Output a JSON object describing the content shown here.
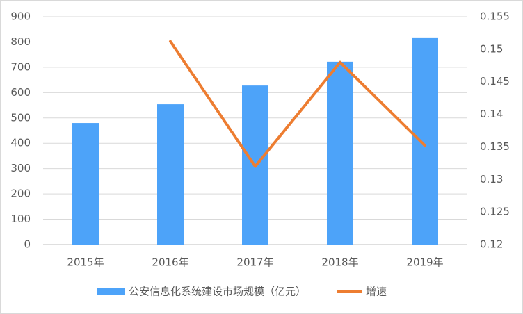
{
  "chart_data": {
    "type": "combo",
    "categories": [
      "2015年",
      "2016年",
      "2017年",
      "2018年",
      "2019年"
    ],
    "series": [
      {
        "name": "公安信息化系统建设市场规模（亿元）",
        "type": "bar",
        "color": "#4da3f9",
        "values": [
          480,
          554,
          628,
          722,
          818
        ]
      },
      {
        "name": "增速",
        "type": "line",
        "axis": "y2",
        "color": "#ed7d31",
        "values": [
          null,
          0.1512,
          0.132,
          0.148,
          0.1352
        ]
      }
    ],
    "ylim": [
      0,
      900
    ],
    "yticks": [
      0,
      100,
      200,
      300,
      400,
      500,
      600,
      700,
      800,
      900
    ],
    "y2lim": [
      0.12,
      0.155
    ],
    "y2ticks": [
      0.12,
      0.125,
      0.13,
      0.135,
      0.14,
      0.145,
      0.15,
      0.155
    ],
    "grid": true,
    "legend": "bottom"
  }
}
